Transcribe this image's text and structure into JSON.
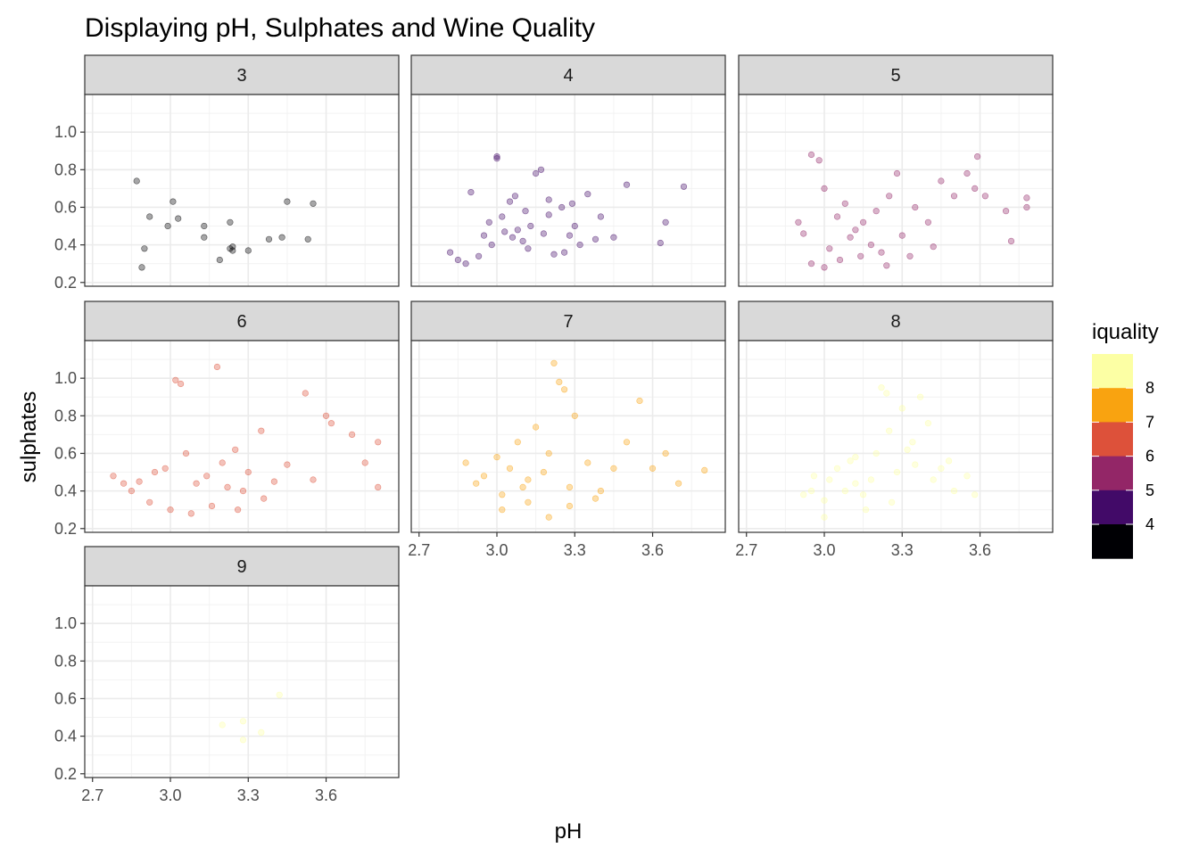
{
  "chart_data": {
    "type": "scatter",
    "title": "Displaying pH, Sulphates and Wine Quality",
    "xlabel": "pH",
    "ylabel": "sulphates",
    "xlim": [
      2.67,
      3.88
    ],
    "ylim": [
      0.18,
      1.2
    ],
    "x_ticks": [
      "2.7",
      "3.0",
      "3.3",
      "3.6"
    ],
    "y_ticks": [
      "0.2",
      "0.4",
      "0.6",
      "0.8",
      "1.0"
    ],
    "grid": true,
    "facet_by": "quality",
    "legend": {
      "title": "iquality",
      "position": "right",
      "items": [
        {
          "label": "8",
          "color": "#FCFFA4"
        },
        {
          "label": "7",
          "color": "#F9A310"
        },
        {
          "label": "6",
          "color": "#DD513A"
        },
        {
          "label": "5",
          "color": "#932667"
        },
        {
          "label": "4",
          "color": "#420A68"
        },
        {
          "label": "",
          "color": "#000004"
        }
      ]
    },
    "panels": [
      {
        "label": "3",
        "color": "#000004",
        "points": [
          [
            2.87,
            0.74
          ],
          [
            2.89,
            0.28
          ],
          [
            2.9,
            0.38
          ],
          [
            2.92,
            0.55
          ],
          [
            2.99,
            0.5
          ],
          [
            3.01,
            0.63
          ],
          [
            3.03,
            0.54
          ],
          [
            3.13,
            0.5
          ],
          [
            3.13,
            0.44
          ],
          [
            3.19,
            0.32
          ],
          [
            3.23,
            0.38
          ],
          [
            3.23,
            0.52
          ],
          [
            3.24,
            0.37
          ],
          [
            3.3,
            0.37
          ],
          [
            3.38,
            0.43
          ],
          [
            3.43,
            0.44
          ],
          [
            3.45,
            0.63
          ],
          [
            3.53,
            0.43
          ],
          [
            3.55,
            0.62
          ],
          [
            3.24,
            0.39
          ]
        ]
      },
      {
        "label": "4",
        "color": "#420A68",
        "points": [
          [
            2.82,
            0.36
          ],
          [
            2.85,
            0.32
          ],
          [
            2.88,
            0.3
          ],
          [
            2.9,
            0.68
          ],
          [
            2.93,
            0.34
          ],
          [
            2.95,
            0.45
          ],
          [
            2.97,
            0.52
          ],
          [
            3.0,
            0.87
          ],
          [
            3.0,
            0.86
          ],
          [
            3.02,
            0.55
          ],
          [
            3.05,
            0.63
          ],
          [
            3.07,
            0.66
          ],
          [
            3.08,
            0.48
          ],
          [
            3.1,
            0.42
          ],
          [
            3.12,
            0.38
          ],
          [
            3.15,
            0.78
          ],
          [
            3.17,
            0.8
          ],
          [
            3.2,
            0.56
          ],
          [
            3.22,
            0.35
          ],
          [
            3.25,
            0.6
          ],
          [
            3.28,
            0.45
          ],
          [
            3.3,
            0.5
          ],
          [
            3.32,
            0.4
          ],
          [
            3.35,
            0.67
          ],
          [
            3.38,
            0.43
          ],
          [
            3.4,
            0.55
          ],
          [
            3.45,
            0.44
          ],
          [
            3.5,
            0.72
          ],
          [
            3.63,
            0.41
          ],
          [
            3.65,
            0.52
          ],
          [
            3.72,
            0.71
          ],
          [
            3.13,
            0.5
          ],
          [
            3.18,
            0.46
          ],
          [
            3.06,
            0.44
          ],
          [
            2.98,
            0.4
          ],
          [
            3.26,
            0.36
          ],
          [
            3.11,
            0.58
          ],
          [
            3.2,
            0.64
          ],
          [
            3.03,
            0.47
          ],
          [
            3.29,
            0.62
          ]
        ]
      },
      {
        "label": "5",
        "color": "#932667",
        "points": [
          [
            2.92,
            0.46
          ],
          [
            2.95,
            0.88
          ],
          [
            2.98,
            0.85
          ],
          [
            3.0,
            0.7
          ],
          [
            3.02,
            0.38
          ],
          [
            3.05,
            0.55
          ],
          [
            3.08,
            0.62
          ],
          [
            3.1,
            0.44
          ],
          [
            3.12,
            0.48
          ],
          [
            3.15,
            0.52
          ],
          [
            3.18,
            0.4
          ],
          [
            3.2,
            0.58
          ],
          [
            3.22,
            0.36
          ],
          [
            3.25,
            0.66
          ],
          [
            3.28,
            0.78
          ],
          [
            3.3,
            0.45
          ],
          [
            3.35,
            0.6
          ],
          [
            3.4,
            0.52
          ],
          [
            3.45,
            0.74
          ],
          [
            3.5,
            0.66
          ],
          [
            3.55,
            0.78
          ],
          [
            3.58,
            0.7
          ],
          [
            3.62,
            0.66
          ],
          [
            3.7,
            0.58
          ],
          [
            3.78,
            0.65
          ],
          [
            3.78,
            0.6
          ],
          [
            3.72,
            0.42
          ],
          [
            3.59,
            0.87
          ],
          [
            2.9,
            0.52
          ],
          [
            2.95,
            0.3
          ],
          [
            3.0,
            0.28
          ],
          [
            3.06,
            0.32
          ],
          [
            3.14,
            0.34
          ],
          [
            3.24,
            0.29
          ],
          [
            3.33,
            0.34
          ],
          [
            3.42,
            0.39
          ]
        ]
      },
      {
        "label": "6",
        "color": "#DD513A",
        "points": [
          [
            2.78,
            0.48
          ],
          [
            2.82,
            0.44
          ],
          [
            2.88,
            0.45
          ],
          [
            2.94,
            0.5
          ],
          [
            2.98,
            0.52
          ],
          [
            3.02,
            0.99
          ],
          [
            3.04,
            0.97
          ],
          [
            3.06,
            0.6
          ],
          [
            3.1,
            0.44
          ],
          [
            3.14,
            0.48
          ],
          [
            3.18,
            1.06
          ],
          [
            3.2,
            0.55
          ],
          [
            3.22,
            0.42
          ],
          [
            3.25,
            0.62
          ],
          [
            3.28,
            0.4
          ],
          [
            3.3,
            0.5
          ],
          [
            3.35,
            0.72
          ],
          [
            3.4,
            0.45
          ],
          [
            3.45,
            0.54
          ],
          [
            3.52,
            0.92
          ],
          [
            3.6,
            0.8
          ],
          [
            3.62,
            0.76
          ],
          [
            3.7,
            0.7
          ],
          [
            3.75,
            0.55
          ],
          [
            3.8,
            0.42
          ],
          [
            3.8,
            0.66
          ],
          [
            2.85,
            0.4
          ],
          [
            2.92,
            0.34
          ],
          [
            3.0,
            0.3
          ],
          [
            3.08,
            0.28
          ],
          [
            3.16,
            0.32
          ],
          [
            3.26,
            0.3
          ],
          [
            3.36,
            0.36
          ],
          [
            3.55,
            0.46
          ]
        ]
      },
      {
        "label": "7",
        "color": "#F9A310",
        "points": [
          [
            2.88,
            0.55
          ],
          [
            2.92,
            0.44
          ],
          [
            2.95,
            0.48
          ],
          [
            3.0,
            0.58
          ],
          [
            3.02,
            0.38
          ],
          [
            3.05,
            0.52
          ],
          [
            3.08,
            0.66
          ],
          [
            3.1,
            0.42
          ],
          [
            3.12,
            0.46
          ],
          [
            3.15,
            0.74
          ],
          [
            3.18,
            0.5
          ],
          [
            3.2,
            0.6
          ],
          [
            3.22,
            1.08
          ],
          [
            3.24,
            0.98
          ],
          [
            3.26,
            0.94
          ],
          [
            3.28,
            0.42
          ],
          [
            3.3,
            0.8
          ],
          [
            3.35,
            0.55
          ],
          [
            3.4,
            0.4
          ],
          [
            3.45,
            0.52
          ],
          [
            3.5,
            0.66
          ],
          [
            3.55,
            0.88
          ],
          [
            3.6,
            0.52
          ],
          [
            3.65,
            0.6
          ],
          [
            3.7,
            0.44
          ],
          [
            3.8,
            0.51
          ],
          [
            3.12,
            0.34
          ],
          [
            3.2,
            0.26
          ],
          [
            3.02,
            0.3
          ],
          [
            3.38,
            0.36
          ],
          [
            3.28,
            0.32
          ]
        ]
      },
      {
        "label": "8",
        "color": "#FCFFA4",
        "points": [
          [
            2.92,
            0.38
          ],
          [
            2.95,
            0.4
          ],
          [
            2.96,
            0.48
          ],
          [
            3.0,
            0.35
          ],
          [
            3.02,
            0.46
          ],
          [
            3.05,
            0.52
          ],
          [
            3.08,
            0.4
          ],
          [
            3.1,
            0.56
          ],
          [
            3.12,
            0.44
          ],
          [
            3.15,
            0.38
          ],
          [
            3.18,
            0.46
          ],
          [
            3.2,
            0.6
          ],
          [
            3.22,
            0.95
          ],
          [
            3.24,
            0.92
          ],
          [
            3.25,
            0.72
          ],
          [
            3.28,
            0.5
          ],
          [
            3.3,
            0.84
          ],
          [
            3.32,
            0.62
          ],
          [
            3.35,
            0.54
          ],
          [
            3.37,
            0.9
          ],
          [
            3.4,
            0.76
          ],
          [
            3.42,
            0.46
          ],
          [
            3.45,
            0.52
          ],
          [
            3.5,
            0.4
          ],
          [
            3.55,
            0.48
          ],
          [
            3.58,
            0.38
          ],
          [
            3.0,
            0.26
          ],
          [
            3.16,
            0.3
          ],
          [
            3.26,
            0.34
          ],
          [
            3.12,
            0.58
          ],
          [
            3.34,
            0.66
          ],
          [
            3.48,
            0.56
          ]
        ]
      },
      {
        "label": "9",
        "color": "#FCFFA4",
        "points": [
          [
            3.2,
            0.46
          ],
          [
            3.28,
            0.48
          ],
          [
            3.28,
            0.38
          ],
          [
            3.35,
            0.42
          ],
          [
            3.42,
            0.62
          ]
        ]
      }
    ]
  }
}
